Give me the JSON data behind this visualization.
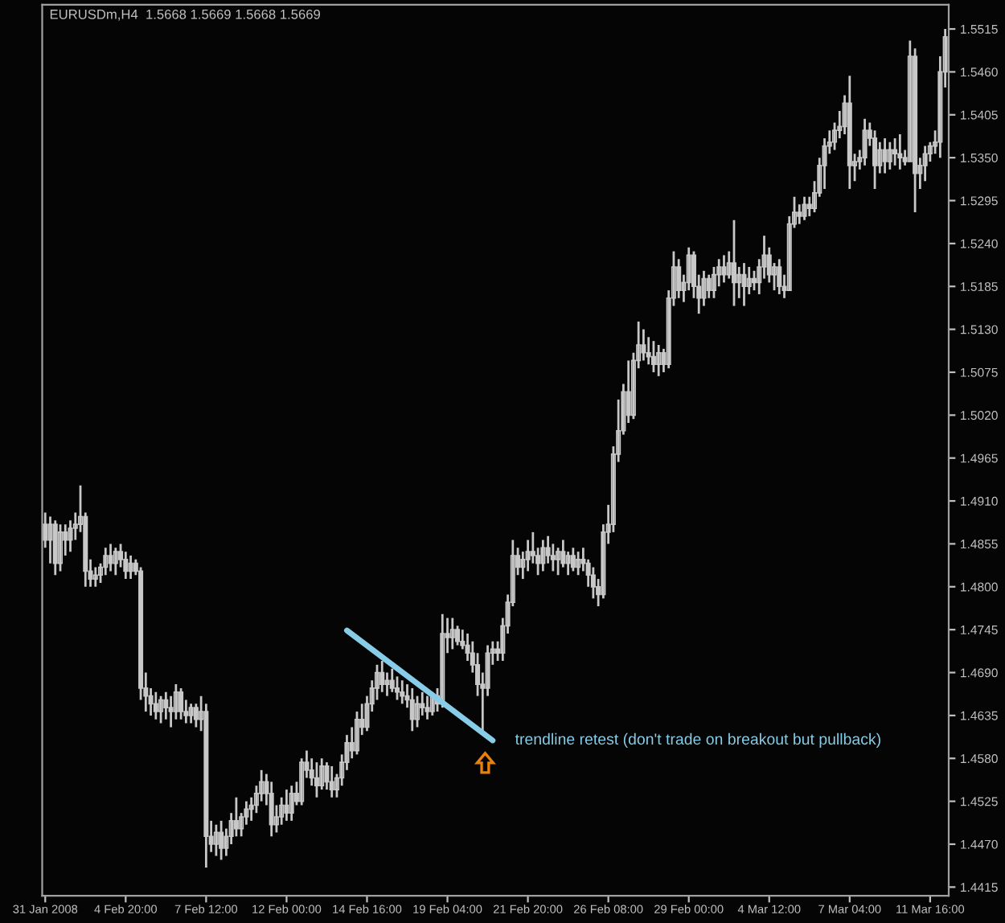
{
  "chart_data": {
    "type": "candlestick",
    "title": "EURUSDm,H4  1.5668 1.5669 1.5668 1.5669",
    "categories": [
      "31 Jan 2008",
      null,
      null,
      null,
      null,
      null,
      null,
      null,
      null,
      null,
      null,
      null,
      null,
      null,
      null,
      null,
      "4 Feb 20:00",
      null,
      null,
      null,
      null,
      null,
      null,
      null,
      null,
      null,
      null,
      null,
      null,
      null,
      null,
      null,
      "7 Feb 12:00",
      null,
      null,
      null,
      null,
      null,
      null,
      null,
      null,
      null,
      null,
      null,
      null,
      null,
      null,
      null,
      "12 Feb 00:00",
      null,
      null,
      null,
      null,
      null,
      null,
      null,
      null,
      null,
      null,
      null,
      null,
      null,
      null,
      null,
      "14 Feb 16:00",
      null,
      null,
      null,
      null,
      null,
      null,
      null,
      null,
      null,
      null,
      null,
      null,
      null,
      null,
      null,
      "19 Feb 04:00",
      null,
      null,
      null,
      null,
      null,
      null,
      null,
      null,
      null,
      null,
      null,
      null,
      null,
      null,
      null,
      "21 Feb 20:00",
      null,
      null,
      null,
      null,
      null,
      null,
      null,
      null,
      null,
      null,
      null,
      null,
      null,
      null,
      null,
      "26 Feb 08:00",
      null,
      null,
      null,
      null,
      null,
      null,
      null,
      null,
      null,
      null,
      null,
      null,
      null,
      null,
      null,
      "29 Feb 00:00",
      null,
      null,
      null,
      null,
      null,
      null,
      null,
      null,
      null,
      null,
      null,
      null,
      null,
      null,
      null,
      "4 Mar 12:00",
      null,
      null,
      null,
      null,
      null,
      null,
      null,
      null,
      null,
      null,
      null,
      null,
      null,
      null,
      null,
      "7 Mar 04:00",
      null,
      null,
      null,
      null,
      null,
      null,
      null,
      null,
      null,
      null,
      null,
      null,
      null,
      null,
      null,
      "11 Mar 16:00",
      null,
      null,
      null
    ],
    "color": "#c8c8c8",
    "ohlc": [
      [
        1.488,
        1.4895,
        1.485,
        1.486
      ],
      [
        1.486,
        1.489,
        1.483,
        1.488
      ],
      [
        1.488,
        1.4885,
        1.4815,
        1.483
      ],
      [
        1.483,
        1.488,
        1.482,
        1.487
      ],
      [
        1.487,
        1.488,
        1.484,
        1.486
      ],
      [
        1.486,
        1.4885,
        1.4845,
        1.4875
      ],
      [
        1.4875,
        1.4895,
        1.486,
        1.488
      ],
      [
        1.488,
        1.493,
        1.487,
        1.489
      ],
      [
        1.489,
        1.4895,
        1.48,
        1.482
      ],
      [
        1.482,
        1.4835,
        1.48,
        1.481
      ],
      [
        1.481,
        1.4825,
        1.48,
        1.4815
      ],
      [
        1.4815,
        1.483,
        1.4805,
        1.4825
      ],
      [
        1.4825,
        1.485,
        1.4815,
        1.484
      ],
      [
        1.484,
        1.4855,
        1.482,
        1.483
      ],
      [
        1.483,
        1.485,
        1.4815,
        1.4845
      ],
      [
        1.4845,
        1.4855,
        1.4825,
        1.4835
      ],
      [
        1.4835,
        1.4845,
        1.481,
        1.482
      ],
      [
        1.482,
        1.484,
        1.481,
        1.483
      ],
      [
        1.483,
        1.4835,
        1.4815,
        1.482
      ],
      [
        1.482,
        1.4825,
        1.4655,
        1.467
      ],
      [
        1.467,
        1.469,
        1.464,
        1.466
      ],
      [
        1.466,
        1.467,
        1.4635,
        1.465
      ],
      [
        1.465,
        1.4665,
        1.463,
        1.464
      ],
      [
        1.464,
        1.466,
        1.4625,
        1.4655
      ],
      [
        1.4655,
        1.4665,
        1.463,
        1.4645
      ],
      [
        1.4645,
        1.466,
        1.462,
        1.464
      ],
      [
        1.464,
        1.4675,
        1.463,
        1.4665
      ],
      [
        1.4665,
        1.467,
        1.463,
        1.464
      ],
      [
        1.464,
        1.4655,
        1.4625,
        1.4635
      ],
      [
        1.4635,
        1.465,
        1.4625,
        1.4645
      ],
      [
        1.4645,
        1.465,
        1.462,
        1.463
      ],
      [
        1.463,
        1.466,
        1.4615,
        1.464
      ],
      [
        1.464,
        1.465,
        1.444,
        1.448
      ],
      [
        1.448,
        1.45,
        1.446,
        1.447
      ],
      [
        1.447,
        1.4495,
        1.4455,
        1.4485
      ],
      [
        1.4485,
        1.45,
        1.445,
        1.4465
      ],
      [
        1.4465,
        1.449,
        1.4455,
        1.448
      ],
      [
        1.448,
        1.451,
        1.447,
        1.45
      ],
      [
        1.45,
        1.453,
        1.448,
        1.449
      ],
      [
        1.449,
        1.451,
        1.448,
        1.4505
      ],
      [
        1.4505,
        1.4525,
        1.4495,
        1.4515
      ],
      [
        1.4515,
        1.453,
        1.45,
        1.452
      ],
      [
        1.452,
        1.4545,
        1.451,
        1.4535
      ],
      [
        1.4535,
        1.4565,
        1.4525,
        1.455
      ],
      [
        1.455,
        1.456,
        1.452,
        1.4535
      ],
      [
        1.4535,
        1.455,
        1.448,
        1.4495
      ],
      [
        1.4495,
        1.452,
        1.4485,
        1.4505
      ],
      [
        1.4505,
        1.453,
        1.4495,
        1.452
      ],
      [
        1.452,
        1.454,
        1.45,
        1.451
      ],
      [
        1.451,
        1.4545,
        1.45,
        1.4535
      ],
      [
        1.4535,
        1.455,
        1.452,
        1.4525
      ],
      [
        1.4525,
        1.458,
        1.452,
        1.4575
      ],
      [
        1.4575,
        1.459,
        1.4555,
        1.4565
      ],
      [
        1.4565,
        1.458,
        1.4545,
        1.4555
      ],
      [
        1.4555,
        1.4575,
        1.453,
        1.4545
      ],
      [
        1.4545,
        1.458,
        1.454,
        1.457
      ],
      [
        1.457,
        1.4575,
        1.454,
        1.455
      ],
      [
        1.455,
        1.457,
        1.453,
        1.454
      ],
      [
        1.454,
        1.456,
        1.453,
        1.4555
      ],
      [
        1.4555,
        1.4585,
        1.4545,
        1.4575
      ],
      [
        1.4575,
        1.461,
        1.4565,
        1.46
      ],
      [
        1.46,
        1.462,
        1.458,
        1.459
      ],
      [
        1.459,
        1.464,
        1.4585,
        1.463
      ],
      [
        1.463,
        1.465,
        1.461,
        1.462
      ],
      [
        1.462,
        1.466,
        1.4615,
        1.465
      ],
      [
        1.465,
        1.468,
        1.464,
        1.467
      ],
      [
        1.467,
        1.47,
        1.4655,
        1.469
      ],
      [
        1.469,
        1.4705,
        1.4665,
        1.4675
      ],
      [
        1.4675,
        1.469,
        1.466,
        1.468
      ],
      [
        1.468,
        1.4695,
        1.4665,
        1.467
      ],
      [
        1.467,
        1.4685,
        1.4655,
        1.4665
      ],
      [
        1.4665,
        1.468,
        1.465,
        1.466
      ],
      [
        1.466,
        1.4675,
        1.4645,
        1.4655
      ],
      [
        1.4655,
        1.467,
        1.4615,
        1.463
      ],
      [
        1.463,
        1.466,
        1.462,
        1.465
      ],
      [
        1.465,
        1.4665,
        1.4635,
        1.4645
      ],
      [
        1.4645,
        1.466,
        1.463,
        1.464
      ],
      [
        1.464,
        1.4665,
        1.4635,
        1.466
      ],
      [
        1.466,
        1.467,
        1.464,
        1.465
      ],
      [
        1.465,
        1.4765,
        1.4645,
        1.474
      ],
      [
        1.474,
        1.476,
        1.4715,
        1.4735
      ],
      [
        1.4735,
        1.476,
        1.472,
        1.4745
      ],
      [
        1.4745,
        1.475,
        1.4725,
        1.473
      ],
      [
        1.473,
        1.4745,
        1.472,
        1.4725
      ],
      [
        1.4725,
        1.474,
        1.4705,
        1.4715
      ],
      [
        1.4715,
        1.473,
        1.469,
        1.47
      ],
      [
        1.47,
        1.4715,
        1.466,
        1.4675
      ],
      [
        1.4675,
        1.469,
        1.4615,
        1.467
      ],
      [
        1.467,
        1.4725,
        1.466,
        1.4715
      ],
      [
        1.4715,
        1.473,
        1.47,
        1.472
      ],
      [
        1.472,
        1.473,
        1.4705,
        1.4715
      ],
      [
        1.4715,
        1.476,
        1.4705,
        1.475
      ],
      [
        1.475,
        1.479,
        1.474,
        1.478
      ],
      [
        1.478,
        1.486,
        1.4775,
        1.484
      ],
      [
        1.484,
        1.485,
        1.4815,
        1.4825
      ],
      [
        1.4825,
        1.4845,
        1.481,
        1.4835
      ],
      [
        1.4835,
        1.486,
        1.482,
        1.4845
      ],
      [
        1.4845,
        1.487,
        1.483,
        1.484
      ],
      [
        1.484,
        1.485,
        1.4815,
        1.483
      ],
      [
        1.483,
        1.486,
        1.482,
        1.485
      ],
      [
        1.485,
        1.4865,
        1.483,
        1.484
      ],
      [
        1.484,
        1.4855,
        1.482,
        1.4835
      ],
      [
        1.4835,
        1.485,
        1.4815,
        1.4845
      ],
      [
        1.4845,
        1.486,
        1.4825,
        1.483
      ],
      [
        1.483,
        1.4845,
        1.4815,
        1.484
      ],
      [
        1.484,
        1.485,
        1.482,
        1.4825
      ],
      [
        1.4825,
        1.4845,
        1.4815,
        1.4835
      ],
      [
        1.4835,
        1.485,
        1.482,
        1.483
      ],
      [
        1.483,
        1.4835,
        1.48,
        1.4815
      ],
      [
        1.4815,
        1.4825,
        1.4785,
        1.48
      ],
      [
        1.48,
        1.481,
        1.4775,
        1.479
      ],
      [
        1.479,
        1.488,
        1.4785,
        1.487
      ],
      [
        1.487,
        1.4905,
        1.4855,
        1.488
      ],
      [
        1.488,
        1.498,
        1.487,
        1.497
      ],
      [
        1.497,
        1.504,
        1.496,
        1.5
      ],
      [
        1.5,
        1.506,
        1.4995,
        1.505
      ],
      [
        1.505,
        1.509,
        1.501,
        1.502
      ],
      [
        1.502,
        1.51,
        1.5015,
        1.509
      ],
      [
        1.509,
        1.514,
        1.508,
        1.511
      ],
      [
        1.511,
        1.513,
        1.509,
        1.51
      ],
      [
        1.51,
        1.512,
        1.5085,
        1.5095
      ],
      [
        1.5095,
        1.5115,
        1.5075,
        1.5085
      ],
      [
        1.5085,
        1.511,
        1.507,
        1.51
      ],
      [
        1.51,
        1.5105,
        1.5075,
        1.5085
      ],
      [
        1.5085,
        1.518,
        1.508,
        1.517
      ],
      [
        1.517,
        1.523,
        1.516,
        1.521
      ],
      [
        1.521,
        1.522,
        1.517,
        1.518
      ],
      [
        1.518,
        1.52,
        1.5165,
        1.519
      ],
      [
        1.519,
        1.5235,
        1.518,
        1.5225
      ],
      [
        1.5225,
        1.523,
        1.517,
        1.5185
      ],
      [
        1.5185,
        1.52,
        1.515,
        1.517
      ],
      [
        1.517,
        1.5205,
        1.516,
        1.5195
      ],
      [
        1.5195,
        1.52,
        1.517,
        1.518
      ],
      [
        1.518,
        1.521,
        1.517,
        1.52
      ],
      [
        1.52,
        1.522,
        1.5185,
        1.521
      ],
      [
        1.521,
        1.5225,
        1.519,
        1.52
      ],
      [
        1.52,
        1.523,
        1.5195,
        1.5215
      ],
      [
        1.5215,
        1.527,
        1.516,
        1.519
      ],
      [
        1.519,
        1.521,
        1.517,
        1.52
      ],
      [
        1.52,
        1.5215,
        1.516,
        1.5185
      ],
      [
        1.5185,
        1.521,
        1.5175,
        1.5195
      ],
      [
        1.5195,
        1.5205,
        1.518,
        1.519
      ],
      [
        1.519,
        1.522,
        1.5175,
        1.521
      ],
      [
        1.521,
        1.525,
        1.5195,
        1.5225
      ],
      [
        1.5225,
        1.5235,
        1.519,
        1.52
      ],
      [
        1.52,
        1.5215,
        1.518,
        1.521
      ],
      [
        1.521,
        1.522,
        1.5175,
        1.5185
      ],
      [
        1.5185,
        1.52,
        1.517,
        1.518
      ],
      [
        1.518,
        1.5275,
        1.518,
        1.5265
      ],
      [
        1.5265,
        1.53,
        1.526,
        1.528
      ],
      [
        1.528,
        1.529,
        1.5265,
        1.5275
      ],
      [
        1.5275,
        1.53,
        1.527,
        1.529
      ],
      [
        1.529,
        1.53,
        1.5275,
        1.5285
      ],
      [
        1.5285,
        1.532,
        1.528,
        1.5305
      ],
      [
        1.5305,
        1.535,
        1.53,
        1.534
      ],
      [
        1.534,
        1.5375,
        1.531,
        1.5365
      ],
      [
        1.5365,
        1.5385,
        1.5355,
        1.537
      ],
      [
        1.537,
        1.5395,
        1.536,
        1.5385
      ],
      [
        1.5385,
        1.541,
        1.5375,
        1.539
      ],
      [
        1.539,
        1.543,
        1.538,
        1.542
      ],
      [
        1.542,
        1.5455,
        1.531,
        1.534
      ],
      [
        1.534,
        1.5355,
        1.532,
        1.5345
      ],
      [
        1.5345,
        1.536,
        1.5335,
        1.535
      ],
      [
        1.535,
        1.54,
        1.534,
        1.5385
      ],
      [
        1.5385,
        1.5395,
        1.5365,
        1.5375
      ],
      [
        1.5375,
        1.5385,
        1.531,
        1.534
      ],
      [
        1.534,
        1.537,
        1.533,
        1.536
      ],
      [
        1.536,
        1.5375,
        1.533,
        1.5345
      ],
      [
        1.5345,
        1.537,
        1.5335,
        1.536
      ],
      [
        1.536,
        1.5375,
        1.534,
        1.5355
      ],
      [
        1.5355,
        1.538,
        1.5335,
        1.535
      ],
      [
        1.535,
        1.536,
        1.534,
        1.5345
      ],
      [
        1.5345,
        1.55,
        1.5345,
        1.548
      ],
      [
        1.548,
        1.549,
        1.528,
        1.533
      ],
      [
        1.533,
        1.535,
        1.531,
        1.534
      ],
      [
        1.534,
        1.5365,
        1.532,
        1.5355
      ],
      [
        1.5355,
        1.537,
        1.5345,
        1.5365
      ],
      [
        1.5365,
        1.5385,
        1.5355,
        1.537
      ],
      [
        1.537,
        1.548,
        1.535,
        1.546
      ],
      [
        1.546,
        1.5515,
        1.544,
        1.5505
      ]
    ],
    "series": [
      {
        "type": "line",
        "color": "#87cde8",
        "values": [
          null,
          null,
          null,
          null,
          null,
          null,
          null,
          null,
          null,
          null,
          null,
          null,
          null,
          null,
          null,
          null,
          null,
          null,
          null,
          null,
          null,
          null,
          null,
          null,
          null,
          null,
          null,
          null,
          null,
          null,
          null,
          null,
          null,
          null,
          null,
          null,
          null,
          null,
          null,
          null,
          null,
          null,
          null,
          null,
          null,
          null,
          null,
          null,
          null,
          null,
          null,
          null,
          null,
          null,
          null,
          null,
          null,
          null,
          null,
          null,
          1.4744,
          null,
          null,
          null,
          null,
          null,
          null,
          null,
          null,
          null,
          null,
          null,
          null,
          null,
          null,
          null,
          null,
          null,
          null,
          null,
          null,
          null,
          null,
          null,
          null,
          null,
          null,
          null,
          null,
          1.4603,
          null,
          null,
          null,
          null,
          null,
          null,
          null,
          null,
          null,
          null,
          null,
          null,
          null,
          null,
          null,
          null,
          null,
          null,
          null,
          null,
          null,
          null,
          null,
          null,
          null,
          null,
          null,
          null,
          null,
          null,
          null,
          null,
          null,
          null,
          null,
          null,
          null,
          null,
          null,
          null,
          null,
          null,
          null,
          null,
          null,
          null,
          null,
          null,
          null,
          null,
          null,
          null,
          null,
          null,
          null,
          null,
          null,
          null,
          null,
          null,
          null,
          null,
          null,
          null,
          null,
          null,
          null,
          null,
          null,
          null,
          null,
          null,
          null,
          null,
          null,
          null,
          null,
          null,
          null,
          null,
          null,
          null,
          null,
          null,
          null,
          null,
          null,
          null,
          null,
          null
        ]
      }
    ],
    "annotations": [
      "trendline retest (don't trade on breakout but pullback)"
    ],
    "ylim": [
      1.4404,
      1.5546
    ],
    "yticks": [
      1.5515,
      {
        "value": 1.546,
        "label": "1.5460"
      },
      1.5405,
      {
        "value": 1.535,
        "label": "1.5350"
      },
      1.5295,
      {
        "value": 1.524,
        "label": "1.5240"
      },
      1.5185,
      {
        "value": 1.513,
        "label": "1.5130"
      },
      1.5075,
      {
        "value": 1.502,
        "label": "1.5020"
      },
      1.4965,
      {
        "value": 1.491,
        "label": "1.4910"
      },
      1.4855,
      {
        "value": 1.48,
        "label": "1.4800"
      },
      1.4745,
      {
        "value": 1.469,
        "label": "1.4690"
      },
      1.4635,
      {
        "value": 1.458,
        "label": "1.4580"
      },
      1.4525,
      {
        "value": 1.447,
        "label": "1.4470"
      },
      1.4415
    ],
    "grid": false
  }
}
